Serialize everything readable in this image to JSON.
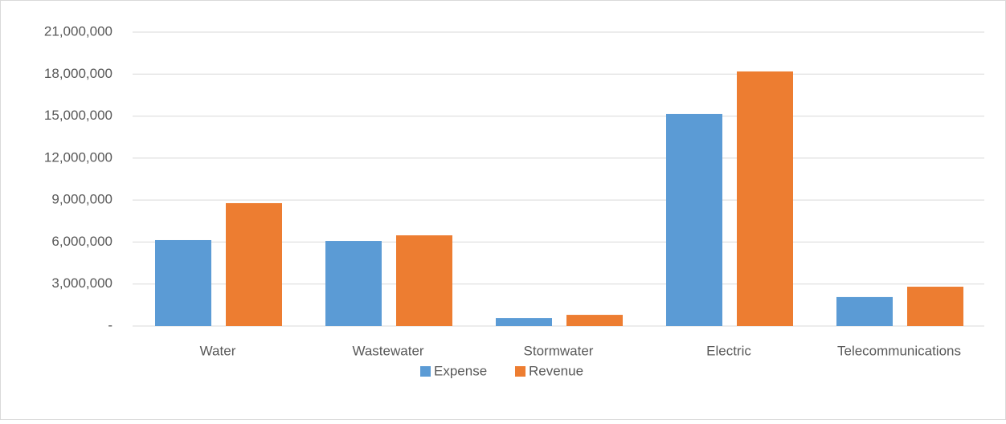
{
  "chart_data": {
    "type": "bar",
    "categories": [
      "Water",
      "Wastewater",
      "Stormwater",
      "Electric",
      "Telecommunications"
    ],
    "series": [
      {
        "name": "Expense",
        "color": "#5b9bd5",
        "values": [
          6140000,
          6080000,
          570000,
          15150000,
          2070000
        ]
      },
      {
        "name": "Revenue",
        "color": "#ed7d31",
        "values": [
          8780000,
          6480000,
          800000,
          18190000,
          2810000
        ]
      }
    ],
    "ylim": [
      0,
      21000000
    ],
    "yticks": [
      {
        "value": 0,
        "label": "-"
      },
      {
        "value": 3000000,
        "label": "3,000,000"
      },
      {
        "value": 6000000,
        "label": "6,000,000"
      },
      {
        "value": 9000000,
        "label": "9,000,000"
      },
      {
        "value": 12000000,
        "label": "12,000,000"
      },
      {
        "value": 15000000,
        "label": "15,000,000"
      },
      {
        "value": 18000000,
        "label": "18,000,000"
      },
      {
        "value": 21000000,
        "label": "21,000,000"
      }
    ],
    "grid": true,
    "legend": "bottom"
  }
}
